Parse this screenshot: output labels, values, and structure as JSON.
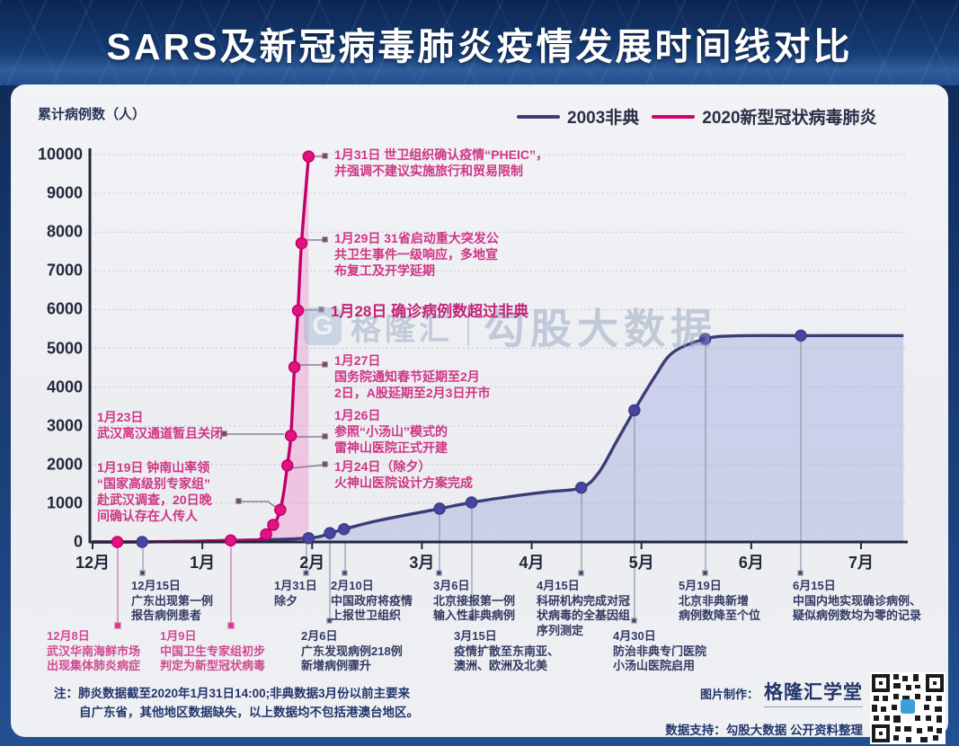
{
  "title": "SARS及新冠病毒肺炎疫情发展时间线对比",
  "y_axis_title": "累计病例数（人）",
  "legend": [
    {
      "label": "2003非典",
      "color": "#3c3c78"
    },
    {
      "label": "2020新型冠状病毒肺炎",
      "color": "#d4006e"
    }
  ],
  "watermark": {
    "logo_glyph": "G",
    "brand_left": "格隆汇",
    "brand_right": "勾股大数据"
  },
  "chart_data": {
    "type": "line",
    "title": "SARS及新冠病毒肺炎疫情发展时间线对比",
    "ylabel": "累计病例数（人）",
    "ylim": [
      0,
      10000
    ],
    "yticks": [
      10000,
      9000,
      8000,
      7000,
      6000,
      5000,
      4000,
      3000,
      2000,
      1000,
      0
    ],
    "x_months": [
      "12月",
      "1月",
      "2月",
      "3月",
      "4月",
      "5月",
      "6月",
      "7月"
    ],
    "grid": "dashed-horizontal",
    "legend_position": "top-right",
    "series": [
      {
        "name": "2003非典",
        "color": "#3c3c78",
        "dot_color": "#4844a6",
        "fill": "rgba(150,160,220,0.38)",
        "points": [
          [
            12,
            1,
            0,
            0
          ],
          [
            12,
            15,
            0,
            1
          ],
          [
            1,
            10,
            40,
            0
          ],
          [
            1,
            31,
            100,
            1
          ],
          [
            2,
            6,
            230,
            1
          ],
          [
            2,
            10,
            330,
            1
          ],
          [
            2,
            20,
            560,
            0
          ],
          [
            3,
            6,
            860,
            1
          ],
          [
            3,
            15,
            1020,
            1
          ],
          [
            3,
            25,
            1160,
            0
          ],
          [
            4,
            5,
            1290,
            0
          ],
          [
            4,
            15,
            1400,
            1
          ],
          [
            4,
            20,
            1800,
            0
          ],
          [
            4,
            25,
            2600,
            0
          ],
          [
            4,
            30,
            3400,
            1
          ],
          [
            5,
            5,
            4300,
            0
          ],
          [
            5,
            10,
            4900,
            0
          ],
          [
            5,
            19,
            5240,
            1
          ],
          [
            5,
            27,
            5320,
            0
          ],
          [
            6,
            15,
            5327,
            1
          ],
          [
            7,
            13,
            5327,
            0
          ]
        ]
      },
      {
        "name": "2020新型冠状病毒肺炎",
        "color": "#c00068",
        "dot_color": "#e11380",
        "fill": "rgba(238,105,190,0.30)",
        "points": [
          [
            12,
            1,
            0,
            0
          ],
          [
            12,
            8,
            0,
            1
          ],
          [
            12,
            20,
            5,
            0
          ],
          [
            1,
            1,
            20,
            0
          ],
          [
            1,
            9,
            41,
            1
          ],
          [
            1,
            16,
            45,
            0
          ],
          [
            1,
            18,
            121,
            0
          ],
          [
            1,
            19,
            198,
            1
          ],
          [
            1,
            20,
            291,
            0
          ],
          [
            1,
            21,
            440,
            1
          ],
          [
            1,
            22,
            571,
            0
          ],
          [
            1,
            23,
            830,
            1
          ],
          [
            1,
            24,
            1287,
            0
          ],
          [
            1,
            25,
            1975,
            1
          ],
          [
            1,
            26,
            2744,
            1
          ],
          [
            1,
            27,
            4515,
            1
          ],
          [
            1,
            28,
            5974,
            1
          ],
          [
            1,
            29,
            7711,
            1
          ],
          [
            1,
            31,
            9950,
            1
          ]
        ]
      }
    ]
  },
  "ann": {
    "a131": "1月31日 世卫组织确认疫情“PHEIC”，\n并强调不建议实施旅行和贸易限制",
    "a129": "1月29日 31省启动重大突发公\n共卫生事件一级响应，多地宣\n布复工及开学延期",
    "a128": "1月28日 确诊病例数超过非典",
    "a127": "1月27日\n国务院通知春节延期至2月\n2日，A股延期至2月3日开市",
    "a126": "1月26日\n参照“小汤山”模式的\n雷神山医院正式开建",
    "a124": "1月24日（除夕）\n火神山医院设计方案完成",
    "a123": "1月23日\n武汉离汉通道暂且关闭",
    "a119": "1月19日 钟南山率领\n“国家高级别专家组”\n赴武汉调查，20日晚\n间确认存在人传人",
    "b1215": "12月15日\n广东出现第一例\n报告病例患者",
    "b0131": "1月31日\n除夕",
    "b0210": "2月10日\n中国政府将疫情\n上报世卫组织",
    "b0306": "3月6日\n北京接报第一例\n输入性非典病例",
    "b0415": "4月15日\n科研机构完成对冠\n状病毒的全基因组\n序列测定",
    "b0519": "5月19日\n北京非典新增\n病例数降至个位",
    "b0615": "6月15日\n中国内地实现确诊病例、\n疑似病例数均为零的记录",
    "c1208": "12月8日\n武汉华南海鲜市场\n出现集体肺炎病症",
    "c0109": "1月9日\n中国卫生专家组初步\n判定为新型冠状病毒",
    "c0206": "2月6日\n广东发现病例218例\n新增病例骤升",
    "c0315": "3月15日\n疫情扩散至东南亚、\n澳洲、欧洲及北美",
    "c0430": "4月30日\n防治非典专门医院\n小汤山医院启用"
  },
  "note": "注：肺炎数据截至2020年1月31日14:00;非典数据3月份以前主要来\n自广东省，其他地区数据缺失，以上数据均不包括港澳台地区。",
  "credits": {
    "maker_label": "图片制作：",
    "maker": "格隆汇学堂",
    "data_support": "数据支持：勾股大数据 公开资料整理"
  }
}
